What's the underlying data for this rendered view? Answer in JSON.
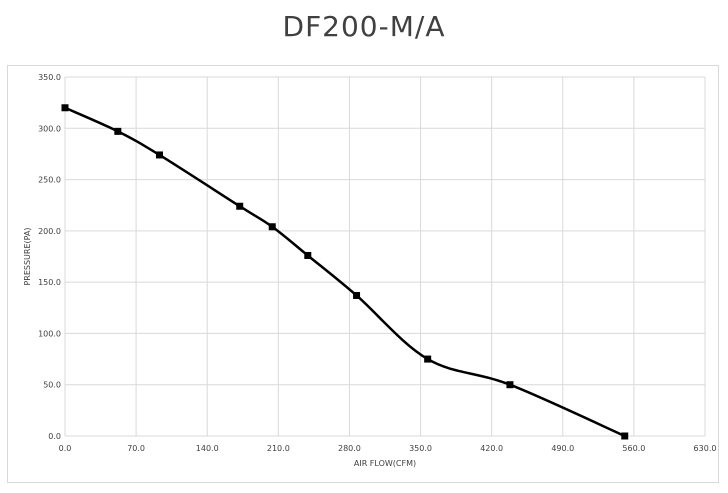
{
  "chart_data": {
    "type": "line",
    "title": "DF200-M/A",
    "xlabel": "AIR FLOW(CFM)",
    "ylabel": "PRESSURE(PA)",
    "xlim": [
      0,
      630
    ],
    "ylim": [
      0,
      350
    ],
    "x_ticks": [
      "0.0",
      "70.0",
      "140.0",
      "210.0",
      "280.0",
      "350.0",
      "420.0",
      "490.0",
      "560.0",
      "630.0"
    ],
    "y_ticks": [
      "0.0",
      "50.0",
      "100.0",
      "150.0",
      "200.0",
      "250.0",
      "300.0",
      "350.0"
    ],
    "grid": true,
    "series": [
      {
        "color": "#000000",
        "marker": "square",
        "smooth": true,
        "x": [
          0,
          52,
          93,
          172,
          204,
          239,
          287,
          357,
          438,
          551
        ],
        "y": [
          320,
          297,
          274,
          224,
          204,
          176,
          137,
          75,
          50,
          0
        ]
      }
    ]
  }
}
